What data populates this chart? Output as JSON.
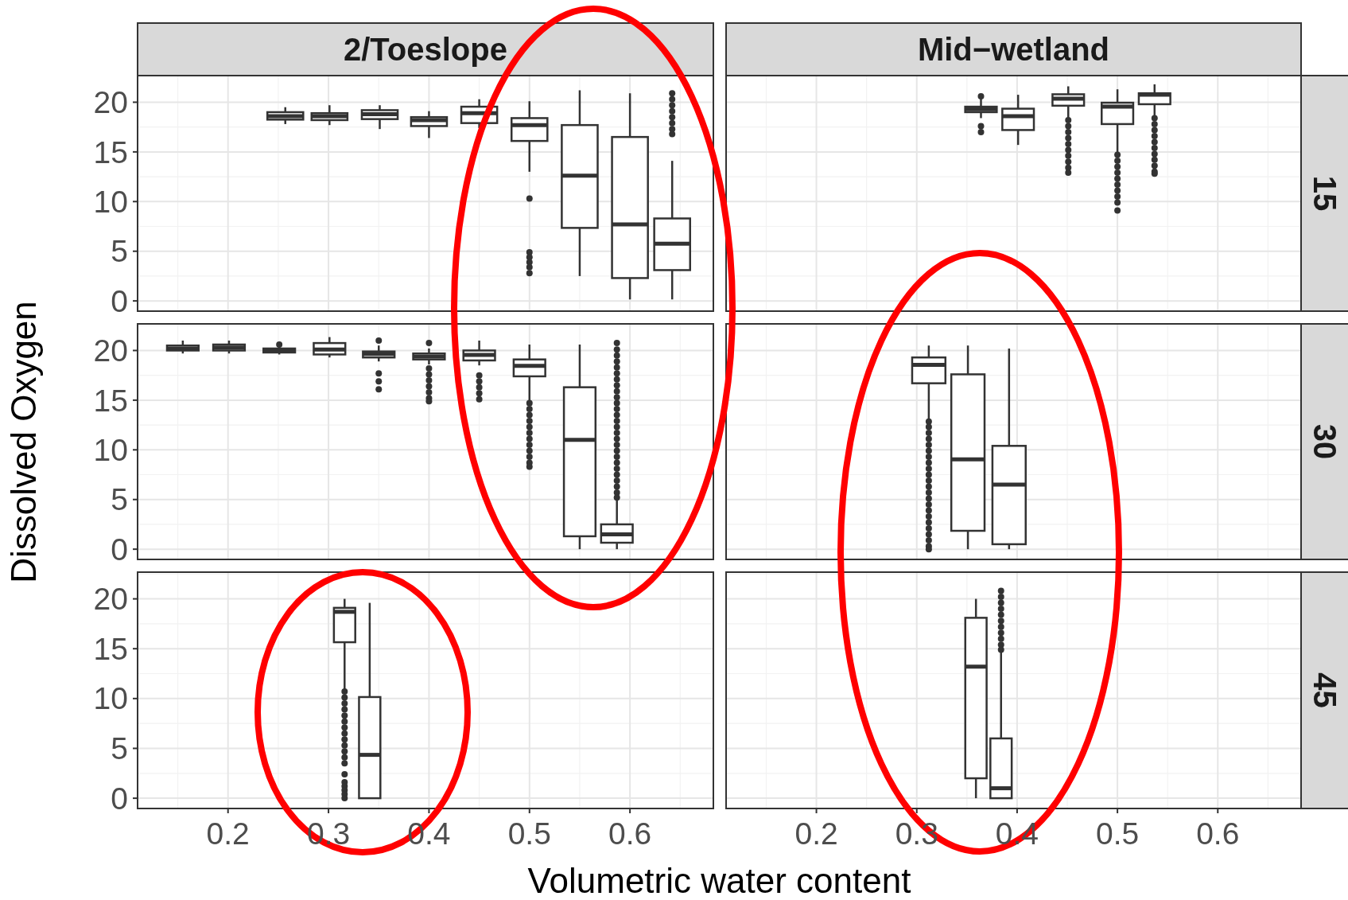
{
  "chart_data": [
    {
      "type": "box",
      "title": "2/Toeslope",
      "xlim": [
        0.11,
        0.683
      ],
      "ylim": [
        -1.03,
        22.68
      ],
      "xticks": [
        0.2,
        0.3,
        0.4,
        0.5,
        0.6
      ],
      "yticks": [
        0,
        5,
        10,
        15,
        20
      ],
      "grid": true,
      "tick_labels": "y",
      "x": [
        0.257,
        0.301,
        0.351,
        0.4,
        0.45,
        0.5,
        0.55,
        0.6,
        0.642
      ],
      "boxes": [
        {
          "low": 17.8,
          "q1": 18.25,
          "median": 18.6,
          "q3": 19.0,
          "high": 19.5
        },
        {
          "low": 17.7,
          "q1": 18.2,
          "median": 18.6,
          "q3": 18.9,
          "high": 19.7
        },
        {
          "low": 17.3,
          "q1": 18.3,
          "median": 18.8,
          "q3": 19.2,
          "high": 19.7
        },
        {
          "low": 16.4,
          "q1": 17.6,
          "median": 18.2,
          "q3": 18.5,
          "high": 19.1
        },
        {
          "low": 17.4,
          "q1": 17.9,
          "median": 18.9,
          "q3": 19.55,
          "high": 20.3
        },
        {
          "low": 13.0,
          "q1": 16.1,
          "median": 17.7,
          "q3": 18.4,
          "high": 20.1,
          "outliers": [
            10.3,
            4.9,
            4.4,
            3.9,
            3.4,
            2.8
          ]
        },
        {
          "low": 2.5,
          "q1": 7.35,
          "median": 12.6,
          "q3": 17.7,
          "high": 21.2
        },
        {
          "low": 0.15,
          "q1": 2.3,
          "median": 7.7,
          "q3": 16.5,
          "high": 20.9
        },
        {
          "low": 0.15,
          "q1": 3.1,
          "median": 5.75,
          "q3": 8.3,
          "high": 14.1,
          "outliers": [
            20.9,
            20.3,
            19.7,
            19.1,
            18.5,
            17.9,
            17.3,
            16.8
          ]
        }
      ]
    },
    {
      "type": "box",
      "title": "Mid−wetland",
      "annotations": [
        "15"
      ],
      "xlim": [
        0.11,
        0.683
      ],
      "ylim": [
        -1.03,
        22.68
      ],
      "xticks": [
        0.2,
        0.3,
        0.4,
        0.5,
        0.6
      ],
      "yticks": [
        0,
        5,
        10,
        15,
        20
      ],
      "grid": true,
      "tick_labels": false,
      "x": [
        0.364,
        0.401,
        0.451,
        0.5,
        0.537
      ],
      "boxes": [
        {
          "low": 18.4,
          "q1": 19.0,
          "median": 19.3,
          "q3": 19.55,
          "high": 20.55,
          "outliers": [
            20.6,
            17.6,
            17.0
          ]
        },
        {
          "low": 15.7,
          "q1": 17.2,
          "median": 18.6,
          "q3": 19.35,
          "high": 20.75
        },
        {
          "low": 18.2,
          "q1": 19.65,
          "median": 20.35,
          "q3": 20.8,
          "high": 21.6,
          "outliers": [
            18.2,
            17.6,
            17.0,
            16.4,
            15.8,
            15.2,
            14.6,
            14.0,
            13.4,
            12.9
          ]
        },
        {
          "low": 14.7,
          "q1": 17.8,
          "median": 19.55,
          "q3": 19.95,
          "high": 21.3,
          "outliers": [
            14.7,
            14.1,
            13.5,
            12.9,
            12.3,
            11.7,
            11.1,
            10.5,
            9.9,
            9.1
          ]
        },
        {
          "low": 18.4,
          "q1": 19.8,
          "median": 20.75,
          "q3": 20.9,
          "high": 21.8,
          "outliers": [
            18.4,
            17.8,
            17.2,
            16.6,
            16.0,
            15.4,
            14.8,
            14.2,
            13.6,
            13.0,
            12.8
          ]
        }
      ]
    },
    {
      "type": "box",
      "ylabel": "Dissolved Oxygen",
      "xlim": [
        0.11,
        0.683
      ],
      "ylim": [
        -1.03,
        22.68
      ],
      "xticks": [
        0.2,
        0.3,
        0.4,
        0.5,
        0.6
      ],
      "yticks": [
        0,
        5,
        10,
        15,
        20
      ],
      "grid": true,
      "tick_labels": "y",
      "x": [
        0.155,
        0.201,
        0.251,
        0.301,
        0.35,
        0.4,
        0.45,
        0.5,
        0.55,
        0.587
      ],
      "boxes": [
        {
          "low": 19.7,
          "q1": 20.0,
          "median": 20.2,
          "q3": 20.5,
          "high": 21.0
        },
        {
          "low": 19.7,
          "q1": 20.0,
          "median": 20.3,
          "q3": 20.6,
          "high": 21.0
        },
        {
          "low": 19.6,
          "q1": 19.8,
          "median": 20.0,
          "q3": 20.2,
          "high": 20.4,
          "outliers": [
            20.6
          ]
        },
        {
          "low": 19.3,
          "q1": 19.6,
          "median": 20.1,
          "q3": 20.75,
          "high": 21.35
        },
        {
          "low": 18.9,
          "q1": 19.3,
          "median": 19.65,
          "q3": 19.9,
          "high": 20.5,
          "outliers": [
            21.0,
            17.7,
            16.9,
            16.1
          ]
        },
        {
          "low": 18.6,
          "q1": 19.1,
          "median": 19.4,
          "q3": 19.7,
          "high": 20.2,
          "outliers": [
            20.75,
            18.2,
            17.6,
            17.0,
            16.4,
            15.8,
            15.2,
            14.9
          ]
        },
        {
          "low": 18.5,
          "q1": 19.0,
          "median": 19.55,
          "q3": 20.0,
          "high": 21.0,
          "outliers": [
            17.5,
            16.9,
            16.3,
            15.7,
            15.1
          ]
        },
        {
          "low": 14.7,
          "q1": 17.4,
          "median": 18.45,
          "q3": 19.1,
          "high": 20.6,
          "outliers": [
            14.7,
            14.1,
            13.5,
            12.9,
            12.3,
            11.7,
            11.1,
            10.5,
            9.9,
            9.3,
            8.7,
            8.3
          ]
        },
        {
          "low": 0,
          "q1": 1.3,
          "median": 11.0,
          "q3": 16.3,
          "high": 20.6
        },
        {
          "low": 0,
          "q1": 0.65,
          "median": 1.5,
          "q3": 2.5,
          "high": 5.0,
          "outliers": [
            20.75,
            20.1,
            19.5,
            18.9,
            18.3,
            17.7,
            17.1,
            16.5,
            15.9,
            15.3,
            14.7,
            14.1,
            13.5,
            12.9,
            12.3,
            11.7,
            11.1,
            10.5,
            9.9,
            9.3,
            8.7,
            8.1,
            7.5,
            6.9,
            6.3,
            5.7,
            5.2
          ]
        }
      ]
    },
    {
      "type": "box",
      "annotations": [
        "30"
      ],
      "xlim": [
        0.11,
        0.683
      ],
      "ylim": [
        -1.03,
        22.68
      ],
      "xticks": [
        0.2,
        0.3,
        0.4,
        0.5,
        0.6
      ],
      "yticks": [
        0,
        5,
        10,
        15,
        20
      ],
      "grid": true,
      "tick_labels": false,
      "x": [
        0.312,
        0.351,
        0.392
      ],
      "boxes": [
        {
          "low": 12.9,
          "q1": 16.7,
          "median": 18.55,
          "q3": 19.3,
          "high": 20.5,
          "outliers": [
            12.85,
            12.3,
            11.7,
            11.1,
            10.5,
            9.9,
            9.3,
            8.7,
            8.1,
            7.5,
            6.9,
            6.3,
            5.7,
            5.1,
            4.5,
            3.9,
            3.3,
            2.7,
            2.1,
            1.5,
            0.9,
            0.3,
            0
          ]
        },
        {
          "low": 0,
          "q1": 1.85,
          "median": 9.05,
          "q3": 17.6,
          "high": 20.5
        },
        {
          "low": 0,
          "q1": 0.5,
          "median": 6.5,
          "q3": 10.4,
          "high": 20.2
        }
      ]
    },
    {
      "type": "box",
      "xlabel": "Volumetric water content",
      "xlim": [
        0.11,
        0.683
      ],
      "ylim": [
        -1.03,
        22.68
      ],
      "xticks": [
        0.2,
        0.3,
        0.4,
        0.5,
        0.6
      ],
      "yticks": [
        0,
        5,
        10,
        15,
        20
      ],
      "grid": true,
      "x": [
        0.316,
        0.341
      ],
      "boxes": [
        {
          "low": 10.7,
          "q1": 15.65,
          "median": 18.7,
          "q3": 19.1,
          "high": 20.0,
          "outliers": [
            10.7,
            10.1,
            9.5,
            8.9,
            8.3,
            7.7,
            7.1,
            6.5,
            5.9,
            5.3,
            4.7,
            4.1,
            3.5,
            2.4,
            1.6,
            1.2,
            0.8,
            0.4,
            0
          ]
        },
        {
          "low": 0,
          "q1": 0,
          "median": 4.35,
          "q3": 10.15,
          "high": 19.6
        }
      ]
    },
    {
      "type": "box",
      "annotations": [
        "45"
      ],
      "xlim": [
        0.11,
        0.683
      ],
      "ylim": [
        -1.03,
        22.68
      ],
      "xticks": [
        0.2,
        0.3,
        0.4,
        0.5,
        0.6
      ],
      "yticks": [
        0,
        5,
        10,
        15,
        20
      ],
      "grid": true,
      "tick_labels": "x",
      "x": [
        0.359,
        0.384
      ],
      "boxes": [
        {
          "low": 0,
          "q1": 2.0,
          "median": 13.2,
          "q3": 18.1,
          "high": 20.0
        },
        {
          "low": 0,
          "q1": 0,
          "median": 1.0,
          "q3": 6.0,
          "high": 14.9,
          "outliers": [
            20.8,
            20.2,
            19.6,
            19.0,
            18.4,
            17.8,
            17.2,
            16.6,
            16.0,
            15.4,
            14.9
          ]
        }
      ]
    }
  ]
}
